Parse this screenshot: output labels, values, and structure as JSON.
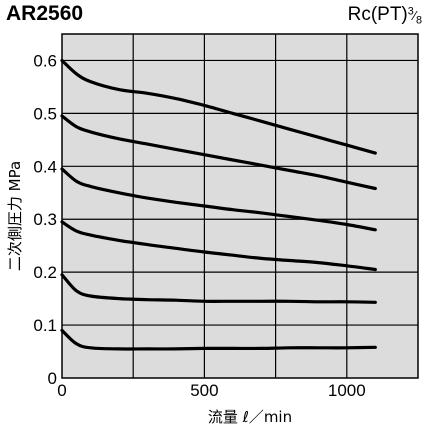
{
  "header": {
    "model": "AR2560",
    "port_prefix": "Rc(PT)",
    "port_num": "3",
    "port_den": "8"
  },
  "chart_data": {
    "type": "line",
    "title": "AR2560",
    "xlabel": "流量 ℓ／min",
    "ylabel": "二次側圧力 MPa",
    "xlim": [
      0,
      1250
    ],
    "ylim": [
      0,
      0.65
    ],
    "x_ticks": [
      "0",
      "500",
      "1000"
    ],
    "y_ticks": [
      "0",
      "0.1",
      "0.2",
      "0.3",
      "0.4",
      "0.5",
      "0.6"
    ],
    "grid": true,
    "series": [
      {
        "x": [
          0,
          50,
          100,
          200,
          300,
          400,
          500,
          600,
          700,
          800,
          900,
          1000,
          1100
        ],
        "y": [
          0.6,
          0.575,
          0.56,
          0.545,
          0.538,
          0.528,
          0.515,
          0.5,
          0.485,
          0.47,
          0.455,
          0.44,
          0.425
        ]
      },
      {
        "x": [
          0,
          50,
          100,
          200,
          300,
          400,
          500,
          600,
          700,
          800,
          900,
          1000,
          1100
        ],
        "y": [
          0.495,
          0.475,
          0.465,
          0.452,
          0.442,
          0.432,
          0.422,
          0.412,
          0.402,
          0.392,
          0.382,
          0.37,
          0.358
        ]
      },
      {
        "x": [
          0,
          50,
          100,
          200,
          300,
          400,
          500,
          600,
          700,
          800,
          900,
          1000,
          1100
        ],
        "y": [
          0.395,
          0.372,
          0.362,
          0.35,
          0.34,
          0.332,
          0.325,
          0.318,
          0.312,
          0.305,
          0.298,
          0.29,
          0.28
        ]
      },
      {
        "x": [
          0,
          50,
          100,
          200,
          300,
          400,
          500,
          600,
          700,
          800,
          900,
          1000,
          1100
        ],
        "y": [
          0.295,
          0.278,
          0.27,
          0.26,
          0.252,
          0.245,
          0.238,
          0.232,
          0.226,
          0.222,
          0.218,
          0.212,
          0.205
        ]
      },
      {
        "x": [
          0,
          50,
          100,
          200,
          300,
          400,
          500,
          600,
          700,
          800,
          900,
          1000,
          1100
        ],
        "y": [
          0.195,
          0.165,
          0.155,
          0.15,
          0.148,
          0.147,
          0.145,
          0.145,
          0.145,
          0.145,
          0.144,
          0.144,
          0.143
        ]
      },
      {
        "x": [
          0,
          50,
          100,
          200,
          300,
          400,
          500,
          600,
          700,
          800,
          900,
          1000,
          1100
        ],
        "y": [
          0.09,
          0.065,
          0.057,
          0.055,
          0.055,
          0.055,
          0.056,
          0.056,
          0.056,
          0.057,
          0.057,
          0.057,
          0.058
        ]
      }
    ]
  }
}
